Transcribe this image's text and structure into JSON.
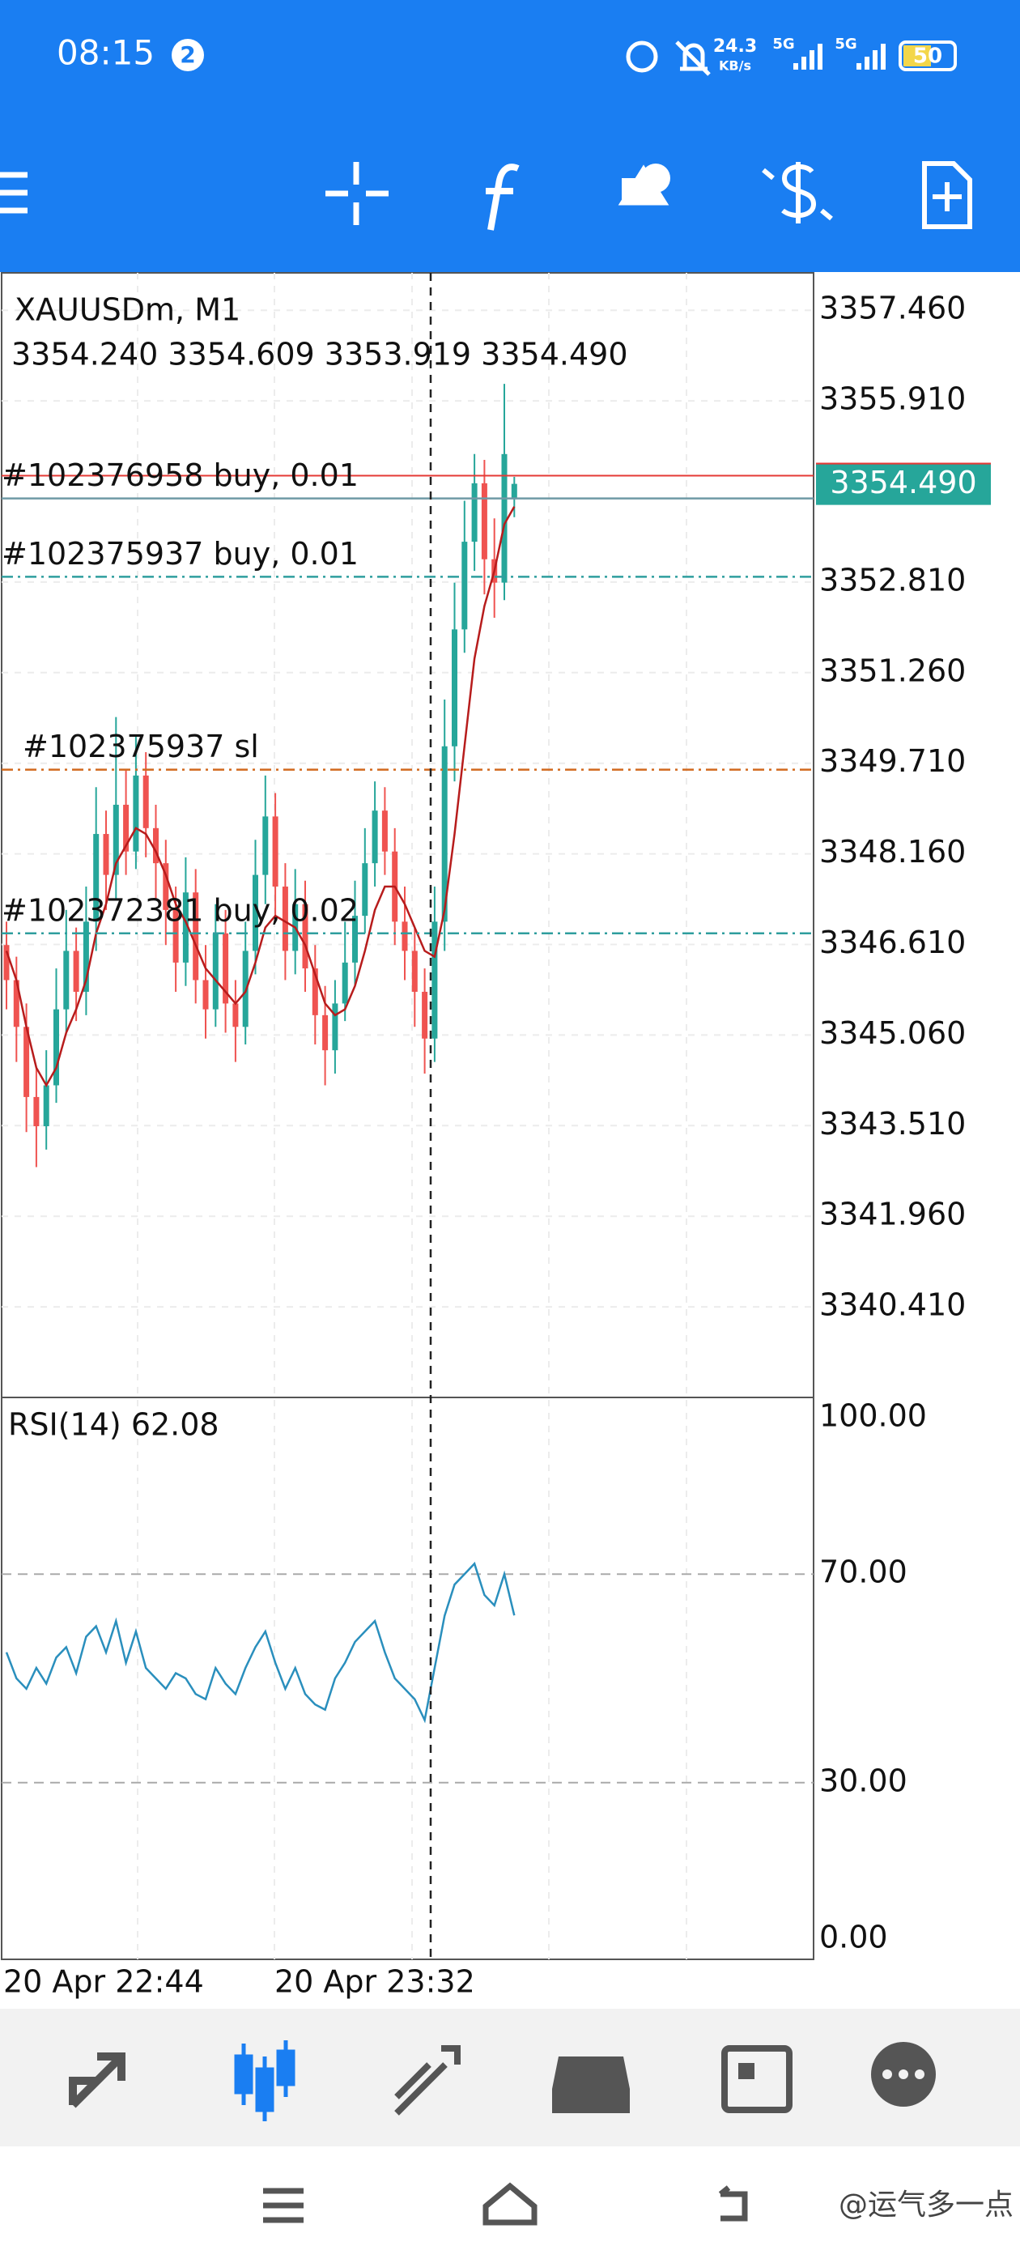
{
  "status_bar": {
    "time": "08:15",
    "notifications": "2",
    "speed": "24.3",
    "speed_unit": "KB/s",
    "network_1": "5G",
    "network_2": "5G",
    "battery": "50"
  },
  "chart_data": {
    "type": "candlestick",
    "title": "XAUUSDm, M1",
    "ohlc": "3354.240 3354.609 3353.919 3354.490",
    "ylim": [
      3338.86,
      3358.1
    ],
    "yticks": [
      {
        "value": 3357.46,
        "label": "3357.460"
      },
      {
        "value": 3355.91,
        "label": "3355.910"
      },
      {
        "value": 3352.81,
        "label": "3352.810"
      },
      {
        "value": 3351.26,
        "label": "3351.260"
      },
      {
        "value": 3349.71,
        "label": "3349.710"
      },
      {
        "value": 3348.16,
        "label": "3348.160"
      },
      {
        "value": 3346.61,
        "label": "3346.610"
      },
      {
        "value": 3345.06,
        "label": "3345.060"
      },
      {
        "value": 3343.51,
        "label": "3343.510"
      },
      {
        "value": 3341.96,
        "label": "3341.960"
      },
      {
        "value": 3340.41,
        "label": "3340.410"
      }
    ],
    "current_price": {
      "value": 3354.49,
      "label": "3354.490"
    },
    "ask": 3354.63,
    "orders": [
      {
        "label": "#102376958 buy, 0.01",
        "price": 3354.24,
        "color": "#6f9aa6"
      },
      {
        "label": "#102375937 buy, 0.01",
        "price": 3352.9,
        "color": "#2f9e9e"
      },
      {
        "label": "#102375937 sl",
        "price": 3349.6,
        "color": "#d2691e"
      },
      {
        "label": "#102372381 buy, 0.02",
        "price": 3346.8,
        "color": "#2f9e9e"
      }
    ],
    "x_labels": [
      "20 Apr 22:44",
      "20 Apr 23:32"
    ],
    "up_color": "#26a69a",
    "down_color": "#ef5350",
    "ma_color": "#b71c1c",
    "close": [
      3346.0,
      3345.2,
      3344.0,
      3343.5,
      3344.2,
      3345.5,
      3346.5,
      3345.8,
      3347.0,
      3348.5,
      3347.8,
      3349.0,
      3348.2,
      3349.5,
      3348.6,
      3348.0,
      3347.2,
      3346.3,
      3347.5,
      3346.0,
      3345.5,
      3346.8,
      3345.6,
      3345.2,
      3346.5,
      3347.8,
      3348.8,
      3347.6,
      3346.5,
      3347.3,
      3346.2,
      3345.4,
      3344.8,
      3345.6,
      3346.3,
      3347.1,
      3348.0,
      3348.9,
      3348.2,
      3347.0,
      3346.5,
      3345.8,
      3345.0,
      3347.0,
      3350.0,
      3352.0,
      3353.5,
      3354.5,
      3353.2,
      3352.8,
      3355.0,
      3354.49
    ],
    "open": [
      3346.6,
      3346.0,
      3345.2,
      3344.0,
      3343.5,
      3344.2,
      3345.5,
      3346.5,
      3345.8,
      3347.0,
      3348.5,
      3347.8,
      3349.0,
      3348.2,
      3349.5,
      3348.6,
      3348.0,
      3347.2,
      3346.3,
      3347.5,
      3346.0,
      3345.5,
      3346.8,
      3345.6,
      3345.2,
      3346.5,
      3347.8,
      3348.8,
      3347.6,
      3346.5,
      3347.3,
      3346.2,
      3345.4,
      3344.8,
      3345.6,
      3346.3,
      3347.1,
      3348.0,
      3348.9,
      3348.2,
      3347.0,
      3346.5,
      3345.8,
      3345.0,
      3347.0,
      3350.0,
      3352.0,
      3353.5,
      3354.5,
      3353.2,
      3352.8,
      3354.24
    ],
    "high": [
      3347.0,
      3346.4,
      3345.6,
      3344.5,
      3344.8,
      3346.2,
      3347.2,
      3346.9,
      3347.6,
      3349.3,
      3348.9,
      3350.5,
      3349.6,
      3350.2,
      3349.9,
      3349.0,
      3348.4,
      3347.6,
      3348.1,
      3347.9,
      3346.6,
      3347.3,
      3347.2,
      3346.0,
      3347.0,
      3348.4,
      3349.5,
      3349.2,
      3348.0,
      3347.9,
      3347.7,
      3346.6,
      3345.9,
      3346.0,
      3347.0,
      3347.7,
      3348.6,
      3349.4,
      3349.3,
      3348.6,
      3347.6,
      3346.9,
      3346.2,
      3347.6,
      3350.8,
      3352.8,
      3354.2,
      3355.0,
      3354.9,
      3353.9,
      3356.2,
      3354.61
    ],
    "low": [
      3345.5,
      3344.6,
      3343.4,
      3342.8,
      3343.1,
      3343.9,
      3345.1,
      3345.3,
      3345.4,
      3346.5,
      3347.2,
      3347.4,
      3347.8,
      3347.9,
      3348.1,
      3347.4,
      3346.6,
      3345.8,
      3345.9,
      3345.6,
      3345.0,
      3345.2,
      3345.1,
      3344.6,
      3344.9,
      3346.1,
      3347.3,
      3347.1,
      3346.0,
      3346.1,
      3345.8,
      3344.9,
      3344.2,
      3344.4,
      3345.3,
      3345.9,
      3346.8,
      3347.6,
      3347.8,
      3346.6,
      3346.0,
      3345.2,
      3344.4,
      3344.6,
      3346.5,
      3349.4,
      3351.6,
      3353.0,
      3352.6,
      3352.2,
      3352.5,
      3353.92
    ],
    "ma": [
      3346.5,
      3346.0,
      3345.2,
      3344.5,
      3344.2,
      3344.5,
      3345.1,
      3345.5,
      3346.0,
      3346.8,
      3347.3,
      3348.0,
      3348.3,
      3348.6,
      3348.5,
      3348.2,
      3347.8,
      3347.3,
      3347.0,
      3346.6,
      3346.2,
      3346.0,
      3345.8,
      3345.6,
      3345.8,
      3346.3,
      3346.9,
      3347.1,
      3347.0,
      3346.9,
      3346.6,
      3346.1,
      3345.6,
      3345.4,
      3345.5,
      3345.9,
      3346.5,
      3347.2,
      3347.6,
      3347.6,
      3347.3,
      3346.9,
      3346.5,
      3346.4,
      3347.2,
      3348.5,
      3350.0,
      3351.5,
      3352.4,
      3353.0,
      3353.8,
      3354.1
    ],
    "rsi": {
      "label": "RSI(14) 62.08",
      "color": "#2a8fbd",
      "ylim": [
        0,
        100
      ],
      "yticks": [
        {
          "value": 100,
          "label": "100.00"
        },
        {
          "value": 70,
          "label": "70.00"
        },
        {
          "value": 30,
          "label": "30.00"
        },
        {
          "value": 0,
          "label": "0.00"
        }
      ],
      "levels": [
        70,
        30
      ],
      "values": [
        55,
        50,
        48,
        52,
        49,
        54,
        56,
        51,
        58,
        60,
        55,
        61,
        53,
        59,
        52,
        50,
        48,
        51,
        50,
        47,
        46,
        52,
        49,
        47,
        52,
        56,
        59,
        53,
        48,
        52,
        47,
        45,
        44,
        50,
        53,
        57,
        59,
        61,
        55,
        50,
        48,
        46,
        42,
        52,
        62,
        68,
        70,
        72,
        66,
        64,
        70,
        62.08
      ]
    }
  },
  "watermark": "@运气多一点"
}
